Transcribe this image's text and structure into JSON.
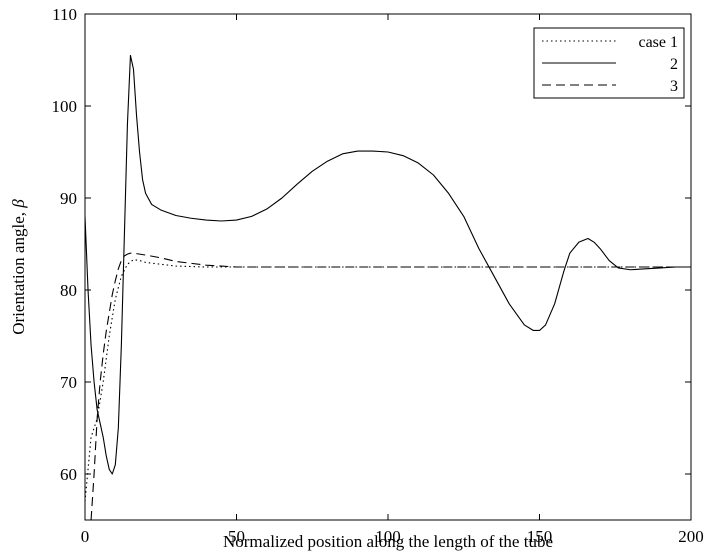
{
  "chart_data": {
    "type": "line",
    "xlabel": "Normalized position along the length of the tube",
    "ylabel_text": "Orientation angle, ",
    "ylabel_symbol": "β",
    "xlim": [
      0,
      200
    ],
    "ylim": [
      55,
      110
    ],
    "xticks": [
      0,
      50,
      100,
      150,
      200
    ],
    "yticks": [
      60,
      70,
      80,
      90,
      100,
      110
    ],
    "grid": false,
    "legend_position": "top-right",
    "series": [
      {
        "name": "case 1",
        "style": "dotted",
        "color": "#000000",
        "x": [
          0,
          2,
          4,
          6,
          8,
          10,
          12,
          14,
          16,
          18,
          20,
          25,
          30,
          40,
          50,
          60,
          80,
          100,
          120,
          140,
          160,
          180,
          200
        ],
        "y": [
          57,
          64,
          66,
          70,
          75,
          79,
          81.5,
          82.8,
          83.3,
          83.2,
          83.0,
          82.8,
          82.6,
          82.5,
          82.5,
          82.5,
          82.5,
          82.5,
          82.5,
          82.5,
          82.5,
          82.5,
          82.5
        ]
      },
      {
        "name": "2",
        "style": "solid",
        "color": "#000000",
        "x": [
          0,
          1,
          2,
          3,
          4,
          5,
          6,
          7,
          8,
          9,
          10,
          11,
          12,
          13,
          14,
          15,
          16,
          17,
          18,
          19,
          20,
          22,
          25,
          30,
          35,
          40,
          45,
          50,
          55,
          60,
          65,
          70,
          75,
          80,
          85,
          90,
          95,
          100,
          105,
          110,
          115,
          120,
          125,
          130,
          135,
          140,
          145,
          148,
          150,
          152,
          155,
          158,
          160,
          163,
          166,
          168,
          170,
          173,
          176,
          180,
          185,
          190,
          195,
          200
        ],
        "y": [
          88,
          80,
          74,
          70,
          67,
          65.5,
          64,
          62,
          60.5,
          60,
          61,
          65,
          74,
          86,
          98,
          105.5,
          104,
          99,
          95,
          92,
          90.5,
          89.3,
          88.7,
          88.1,
          87.8,
          87.6,
          87.5,
          87.6,
          88.0,
          88.8,
          90.0,
          91.5,
          92.9,
          94.0,
          94.8,
          95.1,
          95.1,
          95.0,
          94.6,
          93.8,
          92.5,
          90.5,
          88.0,
          84.5,
          81.5,
          78.5,
          76.2,
          75.6,
          75.6,
          76.2,
          78.5,
          82.0,
          84.0,
          85.2,
          85.6,
          85.2,
          84.5,
          83.2,
          82.4,
          82.2,
          82.3,
          82.4,
          82.5,
          82.5
        ]
      },
      {
        "name": "3",
        "style": "dashed",
        "color": "#000000",
        "x": [
          2,
          3,
          4,
          5,
          6,
          7,
          8,
          9,
          10,
          11,
          12,
          13,
          14,
          15,
          16,
          18,
          20,
          25,
          30,
          35,
          40,
          45,
          50,
          60,
          80,
          100,
          120,
          140,
          160,
          180,
          200
        ],
        "y": [
          55,
          60,
          66,
          70,
          73,
          75.5,
          77.5,
          79.5,
          81,
          82.3,
          83.2,
          83.7,
          83.9,
          84.0,
          84.0,
          83.9,
          83.8,
          83.5,
          83.1,
          82.9,
          82.7,
          82.6,
          82.5,
          82.5,
          82.5,
          82.5,
          82.5,
          82.5,
          82.5,
          82.5,
          82.5
        ]
      }
    ]
  }
}
